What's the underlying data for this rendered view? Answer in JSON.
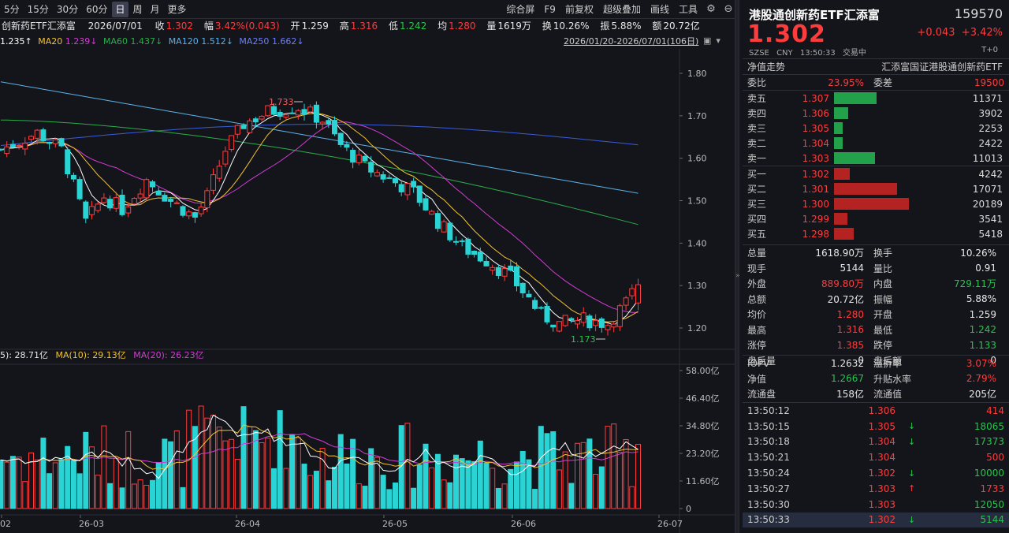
{
  "toolbar": {
    "periods": [
      "5分",
      "15分",
      "30分",
      "60分",
      "日",
      "周",
      "月",
      "更多"
    ],
    "active": "日",
    "right": [
      "综合屏",
      "F9",
      "前复权",
      "超级叠加",
      "画线",
      "工具"
    ],
    "icons": [
      "settings-icon",
      "minimize-icon"
    ]
  },
  "quote": {
    "name_fragment": "创新药ETF汇添富",
    "date": "2026/07/01",
    "close_label": "收",
    "close": "1.302",
    "amp_label": "幅",
    "amp": "3.42%(0.043)",
    "open_label": "开",
    "open": "1.259",
    "high_label": "高",
    "high": "1.316",
    "low_label": "低",
    "low": "1.242",
    "avg_label": "均",
    "avg": "1.280",
    "vol_label": "量",
    "vol": "1619万",
    "turn_label": "换",
    "turn": "10.26%",
    "swing_label": "振",
    "swing": "5.88%",
    "amt_label": "额",
    "amt": "20.72亿"
  },
  "ma": {
    "ma5": "1.235↑",
    "ma20_label": "MA20",
    "ma20": "1.239↓",
    "ma60_label": "MA60",
    "ma60": "1.437↓",
    "ma120_label": "MA120",
    "ma120": "1.512↓",
    "ma250_label": "MA250",
    "ma250": "1.662↓",
    "range": "2026/01/20-2026/07/01(106日)"
  },
  "vol_legend": {
    "v5": "5): 28.71亿",
    "v10": "MA(10): 29.13亿",
    "v20": "MA(20): 26.23亿"
  },
  "chart_data": {
    "type": "candlestick",
    "price_axis": [
      "1.80",
      "1.70",
      "1.60",
      "1.50",
      "1.40",
      "1.30",
      "1.20"
    ],
    "vol_axis": [
      "58.00亿",
      "46.40亿",
      "34.80亿",
      "23.20亿",
      "11.60亿",
      "0"
    ],
    "x_labels": [
      "02",
      "26-03",
      "26-04",
      "26-05",
      "26-06",
      "26-07"
    ],
    "annot_high": "1.733",
    "annot_low": "1.173",
    "colors": {
      "up": "#ff3c3c",
      "down": "#2ad4d4",
      "ma5": "#ffffff",
      "ma10": "#f2c230",
      "ma20": "#d23cd2",
      "ma60": "#2aae4a",
      "ma120": "#5ab0e8",
      "ma250": "#3b5cd6"
    }
  },
  "panel": {
    "name": "港股通创新药ETF汇添富",
    "code": "159570",
    "price": "1.302",
    "change": "+0.043",
    "pct": "+3.42%",
    "market": "SZSE",
    "currency": "CNY",
    "time": "13:50:33",
    "status": "交易中",
    "t0": "T+0",
    "trend_label": "净值走势",
    "fund_full": "汇添富国证港股通创新药ETF",
    "wb_label": "委比",
    "wb": "23.95%",
    "wc_label": "委差",
    "wc": "19500",
    "asks": [
      {
        "label": "卖五",
        "price": "1.307",
        "vol": "11371"
      },
      {
        "label": "卖四",
        "price": "1.306",
        "vol": "3902"
      },
      {
        "label": "卖三",
        "price": "1.305",
        "vol": "2253"
      },
      {
        "label": "卖二",
        "price": "1.304",
        "vol": "2422"
      },
      {
        "label": "卖一",
        "price": "1.303",
        "vol": "11013"
      }
    ],
    "bids": [
      {
        "label": "买一",
        "price": "1.302",
        "vol": "4242"
      },
      {
        "label": "买二",
        "price": "1.301",
        "vol": "17071"
      },
      {
        "label": "买三",
        "price": "1.300",
        "vol": "20189"
      },
      {
        "label": "买四",
        "price": "1.299",
        "vol": "3541"
      },
      {
        "label": "买五",
        "price": "1.298",
        "vol": "5418"
      }
    ],
    "stats": [
      {
        "k": "总量",
        "v": "1618.90万",
        "vc": "wh",
        "k2": "换手",
        "v2": "10.26%",
        "v2c": "wh"
      },
      {
        "k": "现手",
        "v": "5144",
        "vc": "wh",
        "k2": "量比",
        "v2": "0.91",
        "v2c": "wh"
      },
      {
        "k": "外盘",
        "v": "889.80万",
        "vc": "up",
        "k2": "内盘",
        "v2": "729.11万",
        "v2c": "dn"
      },
      {
        "k": "总额",
        "v": "20.72亿",
        "vc": "wh",
        "k2": "振幅",
        "v2": "5.88%",
        "v2c": "wh"
      },
      {
        "k": "均价",
        "v": "1.280",
        "vc": "up",
        "k2": "开盘",
        "v2": "1.259",
        "v2c": "wh"
      },
      {
        "k": "最高",
        "v": "1.316",
        "vc": "up",
        "k2": "最低",
        "v2": "1.242",
        "v2c": "dn"
      },
      {
        "k": "涨停",
        "v": "1.385",
        "vc": "up",
        "k2": "跌停",
        "v2": "1.133",
        "v2c": "dn"
      },
      {
        "k": "盘后量",
        "v": "0",
        "vc": "wh",
        "k2": "盘后额",
        "v2": "0",
        "v2c": "wh"
      }
    ],
    "iopv": [
      {
        "k": "IOPV",
        "v": "1.2632",
        "vc": "wh",
        "k2": "溢折率",
        "v2": "3.07%",
        "v2c": "up"
      },
      {
        "k": "净值",
        "v": "1.2667",
        "vc": "dn",
        "k2": "升贴水率",
        "v2": "2.79%",
        "v2c": "up"
      },
      {
        "k": "流通盘",
        "v": "158亿",
        "vc": "wh",
        "k2": "流通值",
        "v2": "205亿",
        "v2c": "wh"
      }
    ],
    "ticks": [
      {
        "t": "13:50:12",
        "p": "1.306",
        "a": "",
        "v": "414",
        "c": "up"
      },
      {
        "t": "13:50:15",
        "p": "1.305",
        "a": "↓",
        "v": "18065",
        "c": "dn"
      },
      {
        "t": "13:50:18",
        "p": "1.304",
        "a": "↓",
        "v": "17373",
        "c": "dn"
      },
      {
        "t": "13:50:21",
        "p": "1.304",
        "a": "",
        "v": "500",
        "c": "up"
      },
      {
        "t": "13:50:24",
        "p": "1.302",
        "a": "↓",
        "v": "10000",
        "c": "dn"
      },
      {
        "t": "13:50:27",
        "p": "1.303",
        "a": "↑",
        "v": "1733",
        "c": "up"
      },
      {
        "t": "13:50:30",
        "p": "1.303",
        "a": "",
        "v": "12050",
        "c": "dn"
      },
      {
        "t": "13:50:33",
        "p": "1.302",
        "a": "↓",
        "v": "5144",
        "c": "dn"
      }
    ]
  }
}
